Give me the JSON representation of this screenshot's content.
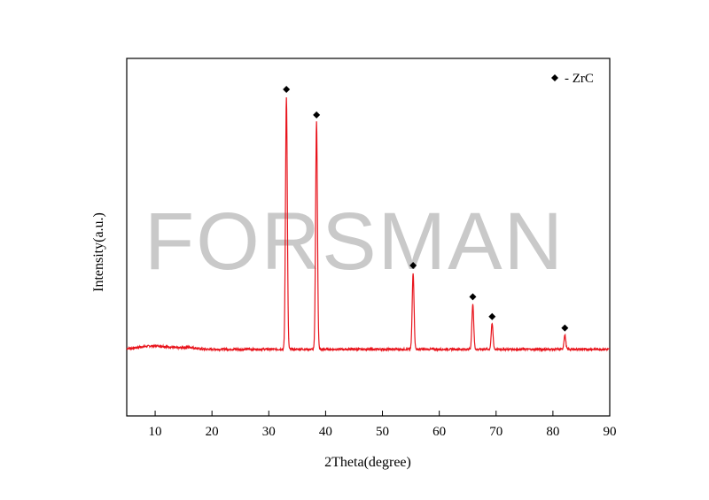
{
  "chart_data": {
    "type": "line",
    "xlabel": "2Theta(degree)",
    "ylabel": "Intensity(a.u.)",
    "xlim": [
      5,
      90
    ],
    "ylim": [
      0,
      100
    ],
    "x_ticks": [
      10,
      20,
      30,
      40,
      50,
      60,
      70,
      80,
      90
    ],
    "y_ticks_shown": false,
    "grid": false,
    "legend": {
      "placement": "top-right",
      "marker": "diamond",
      "label": "- ZrC"
    },
    "series": [
      {
        "color": "#e8141c",
        "baseline": 11,
        "peaks": [
          {
            "x": 33.1,
            "y": 100
          },
          {
            "x": 38.4,
            "y": 91
          },
          {
            "x": 55.4,
            "y": 38
          },
          {
            "x": 65.9,
            "y": 27
          },
          {
            "x": 69.3,
            "y": 20
          },
          {
            "x": 82.1,
            "y": 16
          }
        ]
      }
    ],
    "annotations": [
      {
        "marker": "diamond",
        "x": 33.1,
        "y": 100
      },
      {
        "marker": "diamond",
        "x": 38.4,
        "y": 91
      },
      {
        "marker": "diamond",
        "x": 55.4,
        "y": 38
      },
      {
        "marker": "diamond",
        "x": 65.9,
        "y": 27
      },
      {
        "marker": "diamond",
        "x": 69.3,
        "y": 20
      },
      {
        "marker": "diamond",
        "x": 82.1,
        "y": 16
      }
    ]
  },
  "watermark": "FORSMAN"
}
